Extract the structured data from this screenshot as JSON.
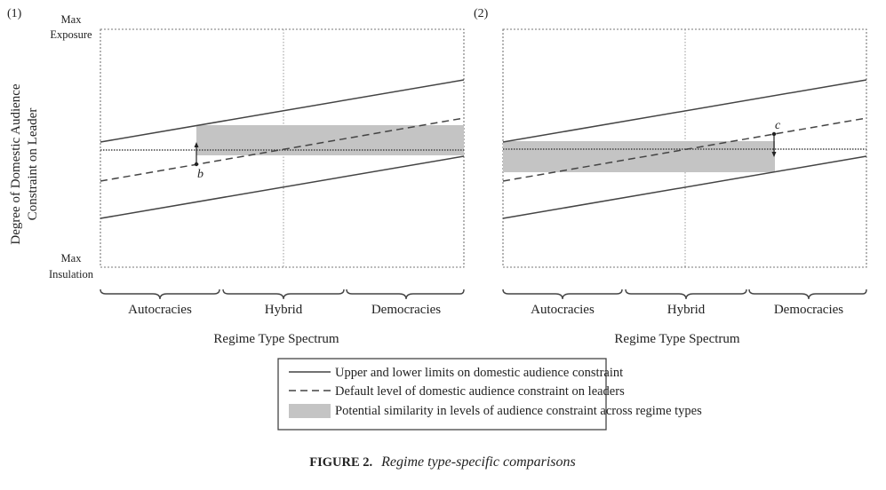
{
  "panels": [
    {
      "label": "(1)",
      "y_axis_label_line1": "Degree of Domestic Audience",
      "y_axis_label_line2": "Constraint on Leader",
      "y_max_line1": "Max",
      "y_max_line2": "Exposure",
      "y_min_line1": "Max",
      "y_min_line2": "Insulation",
      "point_label": "b",
      "categories": [
        "Autocracies",
        "Hybrid",
        "Democracies"
      ],
      "x_axis_label": "Regime Type Spectrum"
    },
    {
      "label": "(2)",
      "point_label": "c",
      "categories": [
        "Autocracies",
        "Hybrid",
        "Democracies"
      ],
      "x_axis_label": "Regime Type Spectrum"
    }
  ],
  "legend": {
    "items": [
      {
        "label": "Upper and lower limits on domestic audience constraint",
        "style": "solid"
      },
      {
        "label": "Default level of domestic audience constraint on leaders",
        "style": "dashed"
      },
      {
        "label": "Potential similarity in levels of audience constraint across regime types",
        "style": "shaded"
      }
    ]
  },
  "caption": {
    "prefix": "FIGURE 2.",
    "title": "Regime type-specific comparisons"
  },
  "colors": {
    "line": "#444444",
    "shade": "#c4c4c4",
    "frame_dots": "#777777",
    "text": "#222222"
  }
}
